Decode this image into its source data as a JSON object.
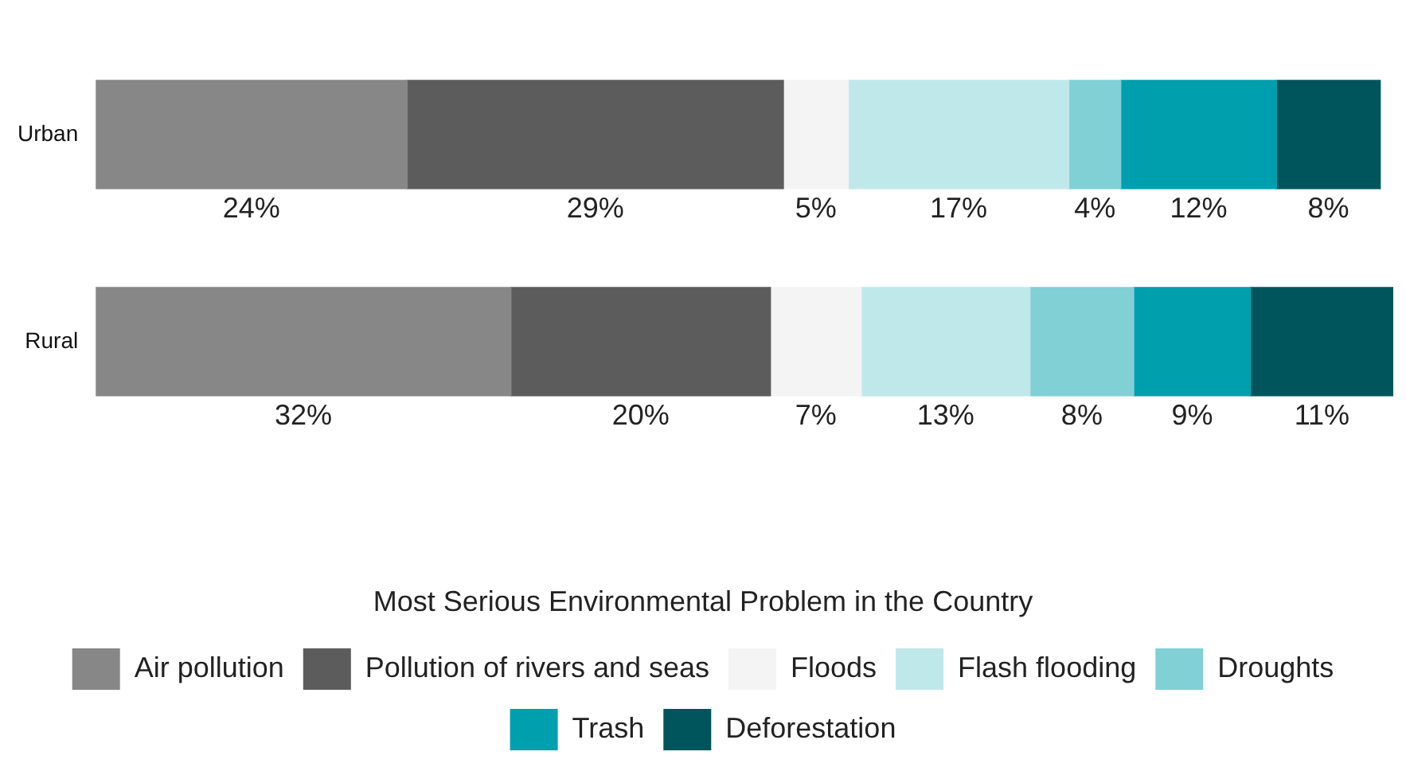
{
  "chart_data": {
    "type": "bar",
    "orientation": "horizontal",
    "stacked": true,
    "categories": [
      "Urban",
      "Rural"
    ],
    "legend_title": "Most Serious Environmental Problem in the Country",
    "series": [
      {
        "name": "Air pollution",
        "color": "#878787",
        "values": [
          24,
          32
        ],
        "value_labels": [
          "24%",
          "32%"
        ]
      },
      {
        "name": "Pollution of rivers and seas",
        "color": "#5c5c5c",
        "values": [
          29,
          20
        ],
        "value_labels": [
          "29%",
          "20%"
        ]
      },
      {
        "name": "Floods",
        "color": "#f4f4f4",
        "values": [
          5,
          7
        ],
        "value_labels": [
          "5%",
          "7%"
        ]
      },
      {
        "name": "Flash flooding",
        "color": "#bfe8ea",
        "values": [
          17,
          13
        ],
        "value_labels": [
          "17%",
          "13%"
        ]
      },
      {
        "name": "Droughts",
        "color": "#80d0d6",
        "values": [
          4,
          8
        ],
        "value_labels": [
          "4%",
          "8%"
        ]
      },
      {
        "name": "Trash",
        "color": "#009fad",
        "values": [
          12,
          9
        ],
        "value_labels": [
          "12%",
          "9%"
        ]
      },
      {
        "name": "Deforestation",
        "color": "#00555c",
        "values": [
          8,
          11
        ],
        "value_labels": [
          "8%",
          "11%"
        ]
      }
    ],
    "tick_labels": "y",
    "legend": "bottom"
  }
}
